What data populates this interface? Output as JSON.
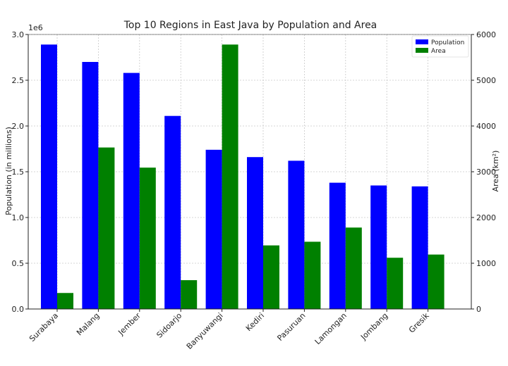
{
  "chart_data": {
    "type": "bar",
    "title": "Top 10 Regions in East Java by Population and Area",
    "categories": [
      "Surabaya",
      "Malang",
      "Jember",
      "Sidoarjo",
      "Banyuwangi",
      "Kediri",
      "Pasuruan",
      "Lamongan",
      "Jombang",
      "Gresik"
    ],
    "series": [
      {
        "name": "Population",
        "axis": "left",
        "color": "#0000ff",
        "values": [
          2890000,
          2700000,
          2580000,
          2110000,
          1740000,
          1660000,
          1620000,
          1380000,
          1350000,
          1340000
        ]
      },
      {
        "name": "Area",
        "axis": "right",
        "color": "#008000",
        "values": [
          350,
          3530,
          3090,
          630,
          5780,
          1390,
          1470,
          1780,
          1120,
          1190
        ]
      }
    ],
    "y_left": {
      "label": "Population (in millions)",
      "label_color": "#3b3bcc",
      "range": [
        0,
        3000000
      ],
      "ticks": [
        0,
        500000,
        1000000,
        1500000,
        2000000,
        2500000,
        3000000
      ],
      "tick_labels": [
        "0.0",
        "0.5",
        "1.0",
        "1.5",
        "2.0",
        "2.5",
        "3.0"
      ],
      "offset_label": "1e6"
    },
    "y_right": {
      "label": "Area (km²)",
      "label_color": "#008000",
      "range": [
        0,
        6000
      ],
      "ticks": [
        0,
        1000,
        2000,
        3000,
        4000,
        5000,
        6000
      ],
      "tick_labels": [
        "0",
        "1000",
        "2000",
        "3000",
        "4000",
        "5000",
        "6000"
      ]
    },
    "grid": true,
    "legend": "top-right"
  }
}
